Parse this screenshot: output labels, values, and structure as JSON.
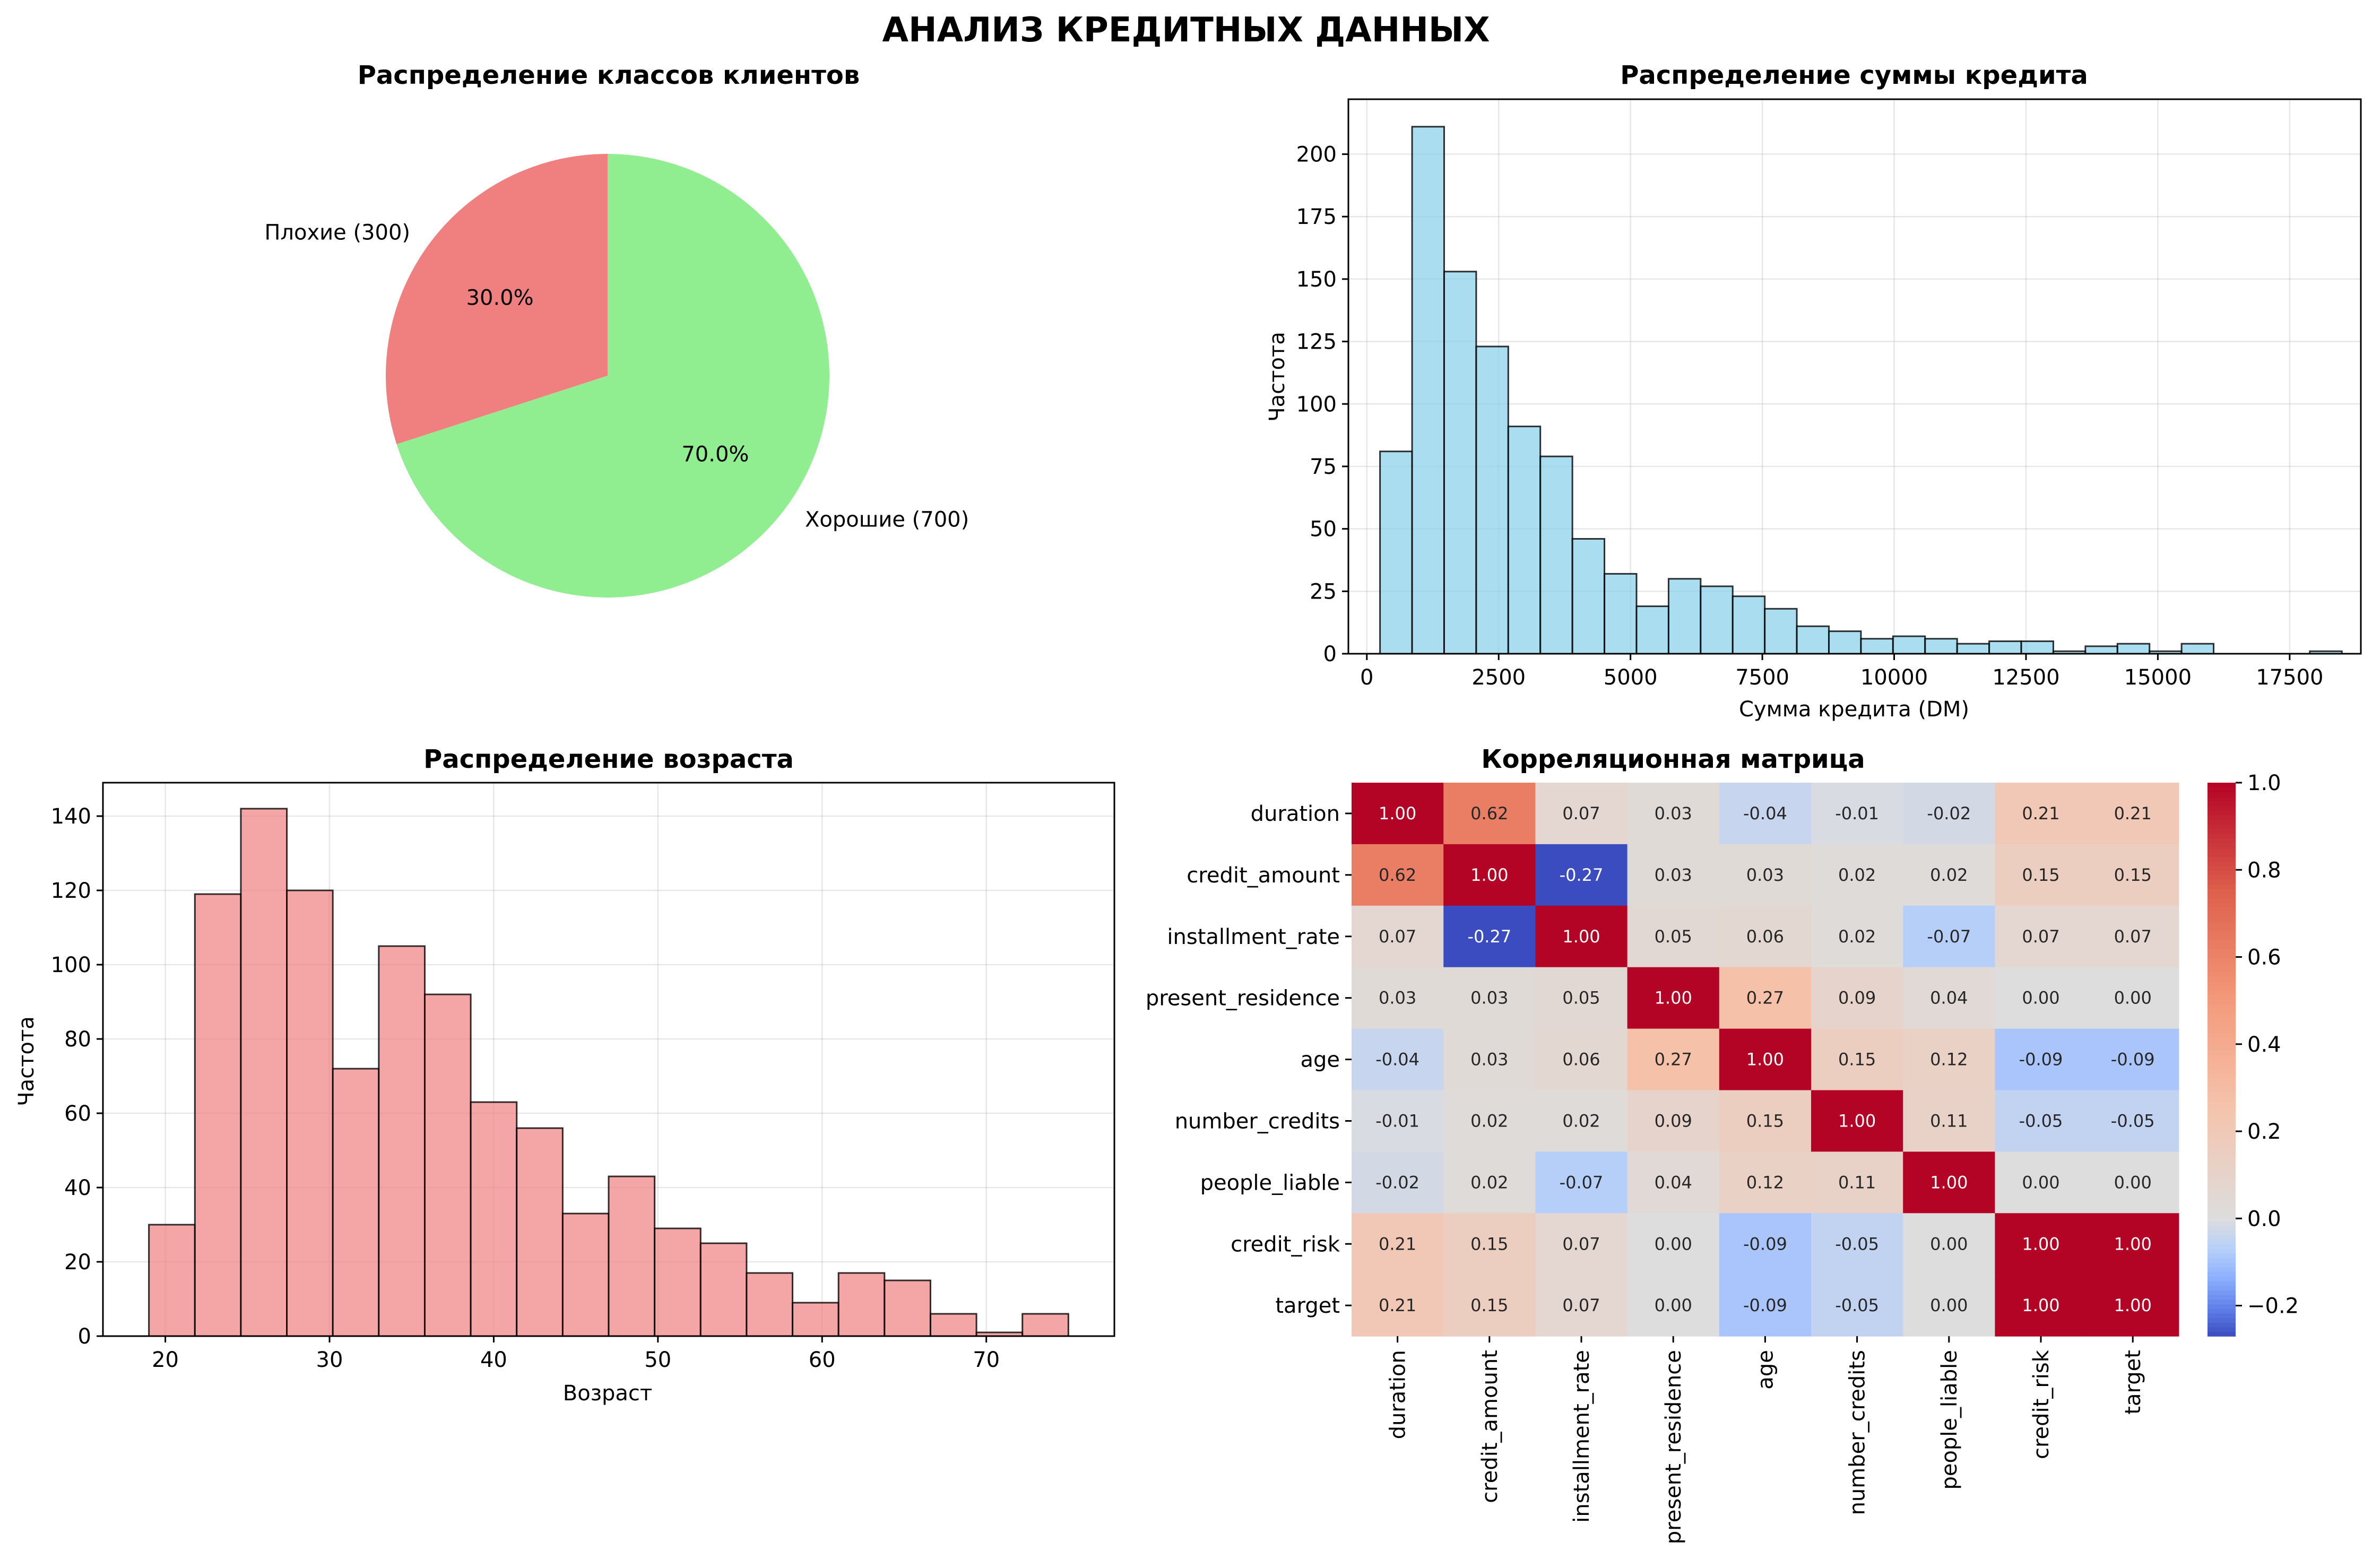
{
  "figure": {
    "suptitle": "АНАЛИЗ КРЕДИТНЫХ ДАННЫХ"
  },
  "chart_data": [
    {
      "type": "pie",
      "title": "Распределение классов клиентов",
      "slices": [
        {
          "label": "Плохие (300)",
          "value": 300,
          "pct_label": "30.0%",
          "color": "#f08080"
        },
        {
          "label": "Хорошие (700)",
          "value": 700,
          "pct_label": "70.0%",
          "color": "#90ee90"
        }
      ],
      "start_angle_deg": 90
    },
    {
      "type": "bar",
      "title": "Распределение суммы кредита",
      "xlabel": "Сумма кредита (DM)",
      "ylabel": "Частота",
      "bar_color": "#87ceeb",
      "bin_start": 250,
      "bin_width": 608,
      "values": [
        81,
        211,
        153,
        123,
        91,
        79,
        46,
        32,
        19,
        30,
        27,
        23,
        18,
        11,
        9,
        6,
        7,
        6,
        4,
        5,
        5,
        1,
        3,
        4,
        1,
        4,
        0,
        0,
        0,
        1
      ],
      "xlim": [
        -350,
        18850
      ],
      "ylim": [
        0,
        222
      ],
      "xticks": [
        0,
        2500,
        5000,
        7500,
        10000,
        12500,
        15000,
        17500
      ],
      "yticks": [
        0,
        25,
        50,
        75,
        100,
        125,
        150,
        175,
        200
      ],
      "grid": true
    },
    {
      "type": "bar",
      "title": "Распределение возраста",
      "xlabel": "Возраст",
      "ylabel": "Частота",
      "bar_color": "#f08080",
      "bin_start": 19,
      "bin_width": 2.8,
      "values": [
        30,
        119,
        142,
        120,
        72,
        105,
        92,
        63,
        56,
        33,
        43,
        29,
        25,
        17,
        9,
        17,
        15,
        6,
        1,
        6
      ],
      "xlim": [
        16.2,
        77.8
      ],
      "ylim": [
        0,
        149
      ],
      "xticks": [
        20,
        30,
        40,
        50,
        60,
        70
      ],
      "yticks": [
        0,
        20,
        40,
        60,
        80,
        100,
        120,
        140
      ],
      "grid": true
    },
    {
      "type": "heatmap",
      "title": "Корреляционная матрица",
      "labels": [
        "duration",
        "credit_amount",
        "installment_rate",
        "present_residence",
        "age",
        "number_credits",
        "people_liable",
        "credit_risk",
        "target"
      ],
      "matrix": [
        [
          1.0,
          0.62,
          0.07,
          0.03,
          -0.04,
          -0.01,
          -0.02,
          0.21,
          0.21
        ],
        [
          0.62,
          1.0,
          -0.27,
          0.03,
          0.03,
          0.02,
          0.02,
          0.15,
          0.15
        ],
        [
          0.07,
          -0.27,
          1.0,
          0.05,
          0.06,
          0.02,
          -0.07,
          0.07,
          0.07
        ],
        [
          0.03,
          0.03,
          0.05,
          1.0,
          0.27,
          0.09,
          0.04,
          0.0,
          0.0
        ],
        [
          -0.04,
          0.03,
          0.06,
          0.27,
          1.0,
          0.15,
          0.12,
          -0.09,
          -0.09
        ],
        [
          -0.01,
          0.02,
          0.02,
          0.09,
          0.15,
          1.0,
          0.11,
          -0.05,
          -0.05
        ],
        [
          -0.02,
          0.02,
          -0.07,
          0.04,
          0.12,
          0.11,
          1.0,
          -0.0,
          -0.0
        ],
        [
          0.21,
          0.15,
          0.07,
          0.0,
          -0.09,
          -0.05,
          -0.0,
          1.0,
          1.0
        ],
        [
          0.21,
          0.15,
          0.07,
          0.0,
          -0.09,
          -0.05,
          -0.0,
          1.0,
          1.0
        ]
      ],
      "colormap": "coolwarm",
      "vmin": -0.27,
      "vmax": 1.0,
      "colorbar_ticks": [
        {
          "value": -0.2,
          "label": "−0.2"
        },
        {
          "value": 0.0,
          "label": "0.0"
        },
        {
          "value": 0.2,
          "label": "0.2"
        },
        {
          "value": 0.4,
          "label": "0.4"
        },
        {
          "value": 0.6,
          "label": "0.6"
        },
        {
          "value": 0.8,
          "label": "0.8"
        },
        {
          "value": 1.0,
          "label": "1.0"
        }
      ]
    }
  ]
}
